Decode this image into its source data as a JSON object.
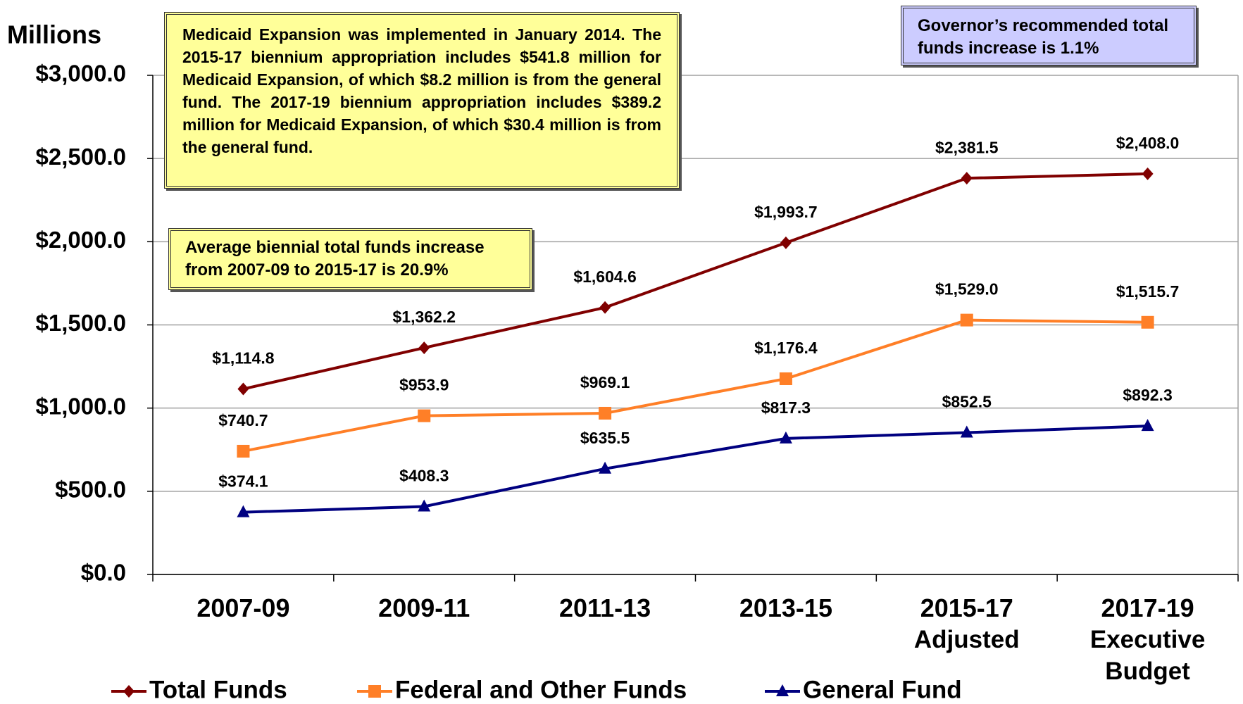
{
  "chart_data": {
    "type": "line",
    "y_label": "Millions",
    "categories": [
      "2007-09",
      "2009-11",
      "2011-13",
      "2013-15",
      "2015-17 Adjusted",
      "2017-19 Executive Budget"
    ],
    "series": [
      {
        "name": "Total Funds",
        "color": "#800000",
        "marker": "diamond",
        "values": [
          1114.8,
          1362.2,
          1604.6,
          1993.7,
          2381.5,
          2408.0
        ],
        "value_labels": [
          "$1,114.8",
          "$1,362.2",
          "$1,604.6",
          "$1,993.7",
          "$2,381.5",
          "$2,408.0"
        ]
      },
      {
        "name": "Federal and Other Funds",
        "color": "#ff7f27",
        "marker": "square",
        "values": [
          740.7,
          953.9,
          969.1,
          1176.4,
          1529.0,
          1515.7
        ],
        "value_labels": [
          "$740.7",
          "$953.9",
          "$969.1",
          "$1,176.4",
          "$1,529.0",
          "$1,515.7"
        ]
      },
      {
        "name": "General Fund",
        "color": "#000080",
        "marker": "triangle",
        "values": [
          374.1,
          408.3,
          635.5,
          817.3,
          852.5,
          892.3
        ],
        "value_labels": [
          "$374.1",
          "$408.3",
          "$635.5",
          "$817.3",
          "$852.5",
          "$892.3"
        ]
      }
    ],
    "ylim": [
      0,
      3000
    ],
    "yticks": [
      {
        "value": 0,
        "label": "$0.0"
      },
      {
        "value": 500,
        "label": "$500.0"
      },
      {
        "value": 1000,
        "label": "$1,000.0"
      },
      {
        "value": 1500,
        "label": "$1,500.0"
      },
      {
        "value": 2000,
        "label": "$2,000.0"
      },
      {
        "value": 2500,
        "label": "$2,500.0"
      },
      {
        "value": 3000,
        "label": "$3,000.0"
      }
    ],
    "grid": true,
    "legend": "bottom",
    "annotations": [
      "Medicaid Expansion was implemented in January 2014. The 2015-17 biennium appropriation includes $541.8 million for Medicaid Expansion, of which $8.2 million is from the general fund. The 2017-19 biennium appropriation includes $389.2 million for Medicaid Expansion, of which $30.4 million is from the general fund.",
      "Average biennial total funds increase from 2007-09 to 2015-17 is 20.9%",
      "Governor’s recommended total funds increase is 1.1%"
    ]
  }
}
